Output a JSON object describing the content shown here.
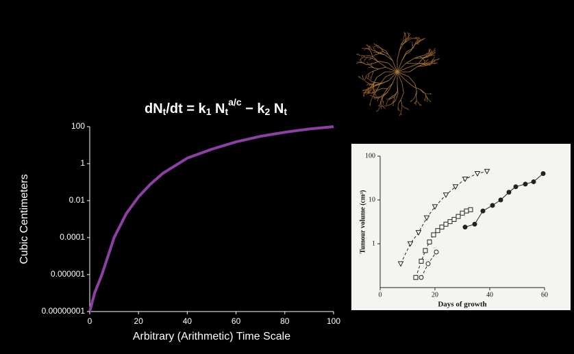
{
  "chart_data": [
    {
      "type": "line",
      "title_parts": [
        {
          "text": "dN"
        },
        {
          "text": "t",
          "shift": "sub"
        },
        {
          "text": "/dt = k"
        },
        {
          "text": "1",
          "shift": "sub"
        },
        {
          "text": " N"
        },
        {
          "text": "t",
          "shift": "sub"
        },
        {
          "text": "a/c",
          "shift": "super"
        },
        {
          "text": " − k"
        },
        {
          "text": "2",
          "shift": "sub"
        },
        {
          "text": " N"
        },
        {
          "text": "t",
          "shift": "sub"
        }
      ],
      "x_label": "Arbitrary (Arithmetic) Time Scale",
      "y_label": "Cubic Centimeters",
      "y_scale": "log",
      "x": [
        0,
        2,
        5,
        10,
        15,
        20,
        25,
        30,
        40,
        50,
        60,
        70,
        80,
        90,
        100
      ],
      "series": [
        {
          "color": "#8e3fa6",
          "values": [
            1e-08,
            1e-07,
            1e-06,
            0.0001,
            0.002,
            0.016,
            0.08,
            0.3,
            2,
            6,
            15,
            30,
            50,
            75,
            100
          ]
        }
      ],
      "xlim": [
        0,
        100
      ],
      "xticks": [
        0,
        20,
        40,
        60,
        80,
        100
      ],
      "ylim": [
        1e-08,
        100
      ],
      "yticks": [
        {
          "value": 1e-08,
          "label": "0.00000001"
        },
        1e-06,
        0.0001,
        0.01,
        1,
        100
      ]
    },
    {
      "type": "line",
      "x_label": "Days of growth",
      "y_label": "Tumour volume (cm³)",
      "y_scale": "log",
      "series": [
        {
          "color": "#222222",
          "marker": "triangle",
          "dashed": true,
          "x": [
            7.5,
            11,
            14,
            17,
            20,
            24,
            27.5,
            31,
            35.5,
            39
          ],
          "values": [
            0.35,
            1,
            1.8,
            3.9,
            7,
            13,
            20,
            30,
            40,
            45
          ]
        },
        {
          "color": "#222222",
          "marker": "square",
          "dashed": true,
          "x": [
            13,
            15,
            16.5,
            18,
            19.5,
            21,
            22.5,
            24,
            25.5,
            27,
            28.5,
            30,
            31.5,
            33
          ],
          "values": [
            0.17,
            0.4,
            0.7,
            1.1,
            1.6,
            2,
            2.4,
            2.8,
            3.2,
            3.6,
            4.2,
            5,
            5.6,
            6
          ]
        },
        {
          "color": "#222222",
          "marker": "circle-open",
          "dashed": true,
          "x": [
            15,
            17.5,
            20.5
          ],
          "values": [
            0.17,
            0.35,
            0.65
          ]
        },
        {
          "color": "#222222",
          "marker": "circle-filled",
          "dashed": false,
          "x": [
            31,
            34.5,
            37.5,
            41,
            44,
            47,
            49.5,
            53,
            56,
            59.5
          ],
          "values": [
            2.4,
            2.8,
            5.6,
            7.5,
            10,
            15,
            20,
            23,
            26,
            40
          ]
        }
      ],
      "xlim": [
        0,
        60
      ],
      "xticks": [
        0,
        20,
        40,
        60
      ],
      "ylim": [
        0.1,
        100
      ],
      "yticks": [
        1,
        10,
        100
      ]
    }
  ]
}
